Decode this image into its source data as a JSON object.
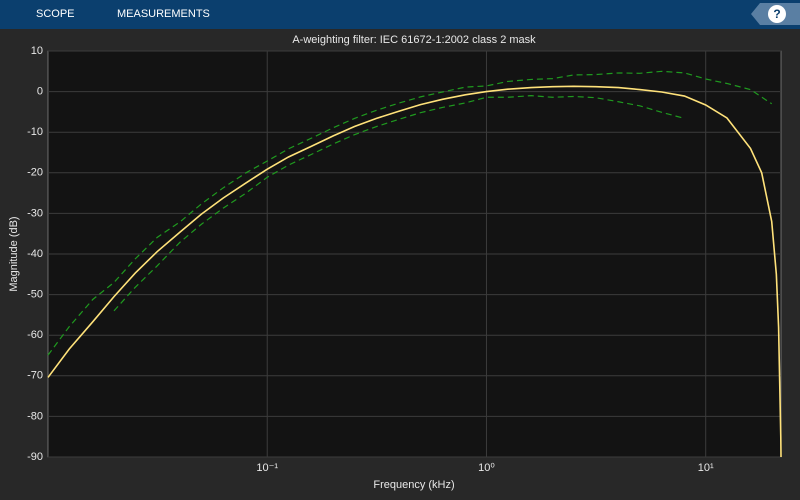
{
  "toolbar": {
    "tabs": [
      "SCOPE",
      "MEASUREMENTS"
    ],
    "help": "?"
  },
  "chart_data": {
    "type": "line",
    "title": "A-weighting filter: IEC 61672-1:2002 class 2 mask",
    "xlabel": "Frequency (kHz)",
    "ylabel": "Magnitude (dB)",
    "xscale": "log",
    "grid": true,
    "xlim": [
      0.01,
      22.05
    ],
    "ylim": [
      -90,
      10
    ],
    "xticks": [
      {
        "value": 0.1,
        "label": "10⁻¹"
      },
      {
        "value": 1,
        "label": "10⁰"
      },
      {
        "value": 10,
        "label": "10¹"
      }
    ],
    "yticks": [
      10,
      0,
      -10,
      -20,
      -30,
      -40,
      -50,
      -60,
      -70,
      -80,
      -90
    ],
    "series": [
      {
        "color": "#ffe27a",
        "dashed": false,
        "x": [
          0.01,
          0.0125,
          0.016,
          0.02,
          0.025,
          0.0315,
          0.04,
          0.05,
          0.063,
          0.08,
          0.1,
          0.125,
          0.16,
          0.2,
          0.25,
          0.315,
          0.4,
          0.5,
          0.63,
          0.8,
          1,
          1.25,
          1.6,
          2,
          2.5,
          3.15,
          4,
          5,
          6.3,
          8,
          10,
          12.5,
          16,
          18,
          20,
          21,
          21.5,
          22,
          22.05
        ],
        "values": [
          -70.4,
          -63.4,
          -56.7,
          -50.5,
          -44.7,
          -39.4,
          -34.6,
          -30.2,
          -26.2,
          -22.5,
          -19.1,
          -16.1,
          -13.4,
          -10.9,
          -8.6,
          -6.6,
          -4.8,
          -3.2,
          -1.9,
          -0.8,
          0,
          0.6,
          1.0,
          1.2,
          1.3,
          1.2,
          1.0,
          0.5,
          -0.1,
          -1.1,
          -3.3,
          -6.5,
          -14,
          -20,
          -32,
          -45,
          -58,
          -85,
          -90
        ]
      },
      {
        "color": "#1f9a1f",
        "dashed": true,
        "x": [
          0.01,
          0.0125,
          0.016,
          0.02,
          0.025,
          0.0315,
          0.04,
          0.05,
          0.063,
          0.08,
          0.1,
          0.125,
          0.16,
          0.2,
          0.25,
          0.315,
          0.4,
          0.5,
          0.63,
          0.8,
          1,
          1.25,
          1.6,
          2,
          2.5,
          3.15,
          4,
          5,
          6.3,
          8,
          10,
          12.5,
          16,
          20
        ],
        "values": [
          -64.9,
          -57.9,
          -51.2,
          -47,
          -41.2,
          -35.9,
          -32.1,
          -27.7,
          -23.7,
          -20,
          -17.1,
          -14.1,
          -11.4,
          -8.9,
          -6.6,
          -4.6,
          -2.8,
          -1.3,
          -0.1,
          1.1,
          1.4,
          2.5,
          3.0,
          3.2,
          4.1,
          4.2,
          4.6,
          4.5,
          5.0,
          4.6,
          3.1,
          2.0,
          0.5,
          -3
        ]
      },
      {
        "color": "#1f9a1f",
        "dashed": true,
        "x": [
          0.02,
          0.025,
          0.0315,
          0.04,
          0.05,
          0.063,
          0.08,
          0.1,
          0.125,
          0.16,
          0.2,
          0.25,
          0.315,
          0.4,
          0.5,
          0.63,
          0.8,
          1,
          1.25,
          1.6,
          2,
          2.5,
          3.15,
          4,
          5,
          6.3,
          8
        ],
        "values": [
          -54,
          -48.2,
          -42.9,
          -37.1,
          -32.7,
          -28.7,
          -25,
          -21.1,
          -18.1,
          -15.4,
          -12.9,
          -10.6,
          -8.6,
          -6.8,
          -5.2,
          -3.9,
          -2.8,
          -1.4,
          -1.4,
          -1.0,
          -1.4,
          -1.2,
          -1.5,
          -2.5,
          -3.5,
          -5.1,
          -6.6
        ]
      }
    ]
  }
}
